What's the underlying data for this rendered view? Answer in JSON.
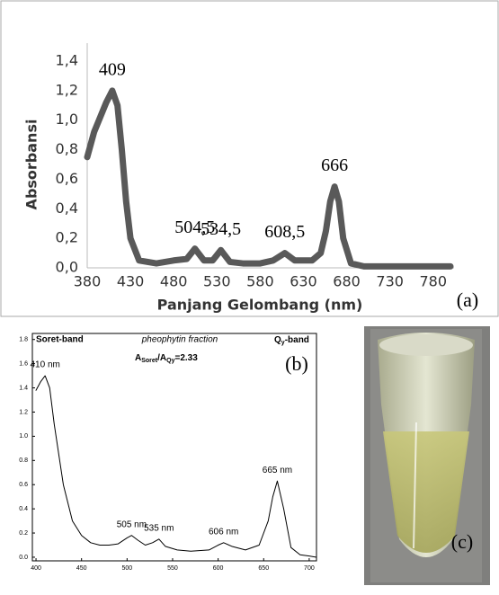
{
  "chart_data": [
    {
      "type": "line",
      "panel_label": "(a)",
      "xlabel": "Panjang Gelombang (nm)",
      "ylabel": "Absorbansi",
      "color": "#595959",
      "x": [
        380,
        388,
        395,
        402,
        409,
        415,
        420,
        425,
        430,
        440,
        460,
        480,
        495,
        504.5,
        515,
        525,
        534.5,
        545,
        560,
        580,
        595,
        608.5,
        620,
        640,
        650,
        656,
        661,
        666,
        671,
        676,
        685,
        700,
        750,
        800
      ],
      "values": [
        0.75,
        0.92,
        1.02,
        1.12,
        1.2,
        1.1,
        0.8,
        0.45,
        0.2,
        0.05,
        0.03,
        0.05,
        0.06,
        0.13,
        0.05,
        0.05,
        0.12,
        0.04,
        0.03,
        0.03,
        0.05,
        0.1,
        0.05,
        0.05,
        0.1,
        0.25,
        0.45,
        0.55,
        0.45,
        0.2,
        0.03,
        0.01,
        0.01,
        0.01
      ],
      "xlim": [
        380,
        800
      ],
      "ylim": [
        0,
        1.4
      ],
      "xticks": [
        380,
        430,
        480,
        530,
        580,
        630,
        680,
        730,
        780
      ],
      "yticks": [
        {
          "value": 0,
          "label": "0,0"
        },
        {
          "value": 0.2,
          "label": "0,2"
        },
        {
          "value": 0.4,
          "label": "0,4"
        },
        {
          "value": 0.6,
          "label": "0,6"
        },
        {
          "value": 0.8,
          "label": "0,8"
        },
        {
          "value": 1.0,
          "label": "1,0"
        },
        {
          "value": 1.2,
          "label": "1,2"
        },
        {
          "value": 1.4,
          "label": "1,4"
        }
      ],
      "annotations": [
        {
          "text": "409",
          "x": 409
        },
        {
          "text": "504,5",
          "x": 504.5
        },
        {
          "text": "534,5",
          "x": 534.5
        },
        {
          "text": "608,5",
          "x": 608.5
        },
        {
          "text": "666",
          "x": 666
        }
      ]
    },
    {
      "type": "line",
      "panel_label": "(b)",
      "color": "#000000",
      "x": [
        400,
        405,
        410,
        415,
        420,
        430,
        440,
        450,
        460,
        470,
        480,
        490,
        500,
        505,
        512,
        520,
        528,
        535,
        542,
        555,
        570,
        590,
        600,
        606,
        615,
        630,
        645,
        655,
        660,
        665,
        672,
        680,
        690,
        700,
        708
      ],
      "values": [
        1.38,
        1.45,
        1.5,
        1.4,
        1.1,
        0.6,
        0.3,
        0.18,
        0.12,
        0.1,
        0.1,
        0.11,
        0.16,
        0.18,
        0.14,
        0.1,
        0.12,
        0.15,
        0.09,
        0.06,
        0.05,
        0.06,
        0.1,
        0.12,
        0.09,
        0.06,
        0.1,
        0.3,
        0.5,
        0.63,
        0.4,
        0.08,
        0.02,
        0.01,
        0.0
      ],
      "xlim": [
        396,
        708
      ],
      "ylim": [
        -0.03,
        1.85
      ],
      "xticks": [
        400,
        450,
        500,
        550,
        600,
        650,
        700
      ],
      "yticks": [
        {
          "value": 0,
          "label": "0.0"
        },
        {
          "value": 0.2,
          "label": "0.2"
        },
        {
          "value": 0.4,
          "label": "0.4"
        },
        {
          "value": 0.6,
          "label": "0.6"
        },
        {
          "value": 0.8,
          "label": "0.8"
        },
        {
          "value": 1.0,
          "label": "1.0"
        },
        {
          "value": 1.2,
          "label": "1.2"
        },
        {
          "value": 1.4,
          "label": "1.4"
        },
        {
          "value": 1.6,
          "label": "1.6"
        },
        {
          "value": 1.8,
          "label": "1.8"
        }
      ],
      "annotations": [
        {
          "text": "410 nm",
          "x": 410
        },
        {
          "text": "505 nm",
          "x": 505
        },
        {
          "text": "535 nm",
          "x": 535
        },
        {
          "text": "606 nm",
          "x": 606
        },
        {
          "text": "665 nm",
          "x": 665
        }
      ],
      "soret_band": "Soret-band",
      "fraction": "pheophytin fraction",
      "qy_band": {
        "q": "Q",
        "sub": "y",
        "rest": "-band"
      },
      "ratio": {
        "a1": "A",
        "s1": "Soret",
        "a2": "/A",
        "s2": "Qy",
        "eq": "=2.33"
      }
    }
  ],
  "photo": {
    "label": "(c)"
  }
}
